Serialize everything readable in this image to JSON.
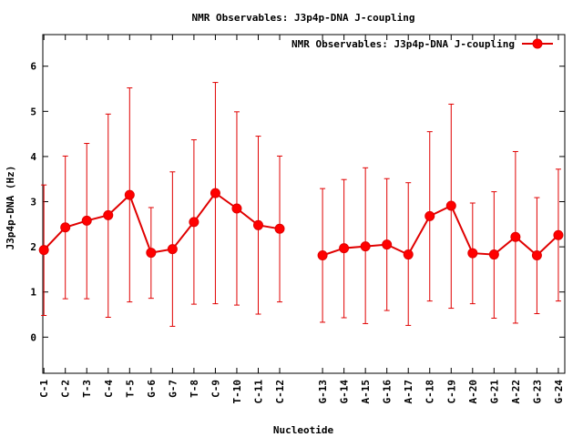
{
  "chart_data": {
    "type": "line",
    "title": "NMR Observables: J3p4p-DNA J-coupling",
    "xlabel": "Nucleotide",
    "ylabel": "J3p4p-DNA (Hz)",
    "ylim": [
      -0.8,
      6.7
    ],
    "yticks": [
      0,
      1,
      2,
      3,
      4,
      5,
      6
    ],
    "legend_position": "top-right",
    "categories": [
      "C-1",
      "C-2",
      "T-3",
      "C-4",
      "T-5",
      "G-6",
      "G-7",
      "T-8",
      "C-9",
      "T-10",
      "C-11",
      "C-12",
      "G-13",
      "G-14",
      "A-15",
      "G-16",
      "A-17",
      "C-18",
      "C-19",
      "A-20",
      "G-21",
      "A-22",
      "G-23",
      "G-24"
    ],
    "x": [
      1,
      2,
      3,
      4,
      5,
      6,
      7,
      8,
      9,
      10,
      11,
      12,
      14,
      15,
      16,
      17,
      18,
      19,
      20,
      21,
      22,
      23,
      24,
      25
    ],
    "series": [
      {
        "name": "NMR Observables: J3p4p-DNA J-coupling",
        "color": "#e00000",
        "segments": [
          [
            0,
            11
          ],
          [
            12,
            23
          ]
        ],
        "values": [
          1.93,
          2.43,
          2.58,
          2.7,
          3.15,
          1.87,
          1.95,
          2.55,
          3.19,
          2.85,
          2.48,
          2.4,
          1.81,
          1.97,
          2.01,
          2.05,
          1.83,
          2.68,
          2.91,
          1.86,
          1.83,
          2.22,
          1.81,
          2.26
        ],
        "err_low": [
          0.48,
          0.85,
          0.85,
          0.44,
          0.78,
          0.86,
          0.24,
          0.73,
          0.74,
          0.71,
          0.51,
          0.78,
          0.33,
          0.43,
          0.3,
          0.59,
          0.26,
          0.8,
          0.64,
          0.74,
          0.42,
          0.31,
          0.52,
          0.8
        ],
        "err_high": [
          3.37,
          4.01,
          4.29,
          4.94,
          5.52,
          2.87,
          3.66,
          4.37,
          5.64,
          4.99,
          4.45,
          4.01,
          3.29,
          3.49,
          3.75,
          3.51,
          3.42,
          4.55,
          5.16,
          2.97,
          3.22,
          4.11,
          3.09,
          3.72
        ]
      }
    ]
  }
}
